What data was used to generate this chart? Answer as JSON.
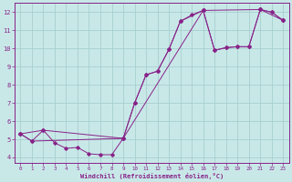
{
  "background_color": "#c8e8e8",
  "grid_color": "#a8cece",
  "line_color": "#882288",
  "marker": "D",
  "marker_size": 1.8,
  "xlabel": "Windchill (Refroidissement éolien,°C)",
  "xlim": [
    -0.5,
    23.5
  ],
  "ylim": [
    3.7,
    12.5
  ],
  "xticks": [
    0,
    1,
    2,
    3,
    4,
    5,
    6,
    7,
    8,
    9,
    10,
    11,
    12,
    13,
    14,
    15,
    16,
    17,
    18,
    19,
    20,
    21,
    22,
    23
  ],
  "yticks": [
    4,
    5,
    6,
    7,
    8,
    9,
    10,
    11,
    12
  ],
  "line1_x": [
    0,
    1,
    2,
    3,
    4,
    5,
    6,
    7,
    8,
    9,
    10,
    11,
    12,
    13,
    14,
    15,
    16,
    17,
    18,
    19,
    20,
    21,
    22,
    23
  ],
  "line1_y": [
    5.3,
    4.9,
    5.5,
    4.8,
    4.5,
    4.55,
    4.2,
    4.15,
    4.15,
    5.05,
    7.0,
    8.55,
    8.75,
    9.95,
    11.5,
    11.85,
    12.1,
    9.9,
    10.05,
    10.1,
    10.1,
    12.15,
    12.0,
    11.55
  ],
  "line2_x": [
    0,
    1,
    9,
    16,
    21,
    23
  ],
  "line2_y": [
    5.3,
    4.9,
    5.05,
    12.1,
    12.15,
    11.55
  ],
  "line3_x": [
    0,
    2,
    9,
    10,
    11,
    12,
    13,
    14,
    16,
    17,
    18,
    19,
    20,
    21,
    22,
    23
  ],
  "line3_y": [
    5.3,
    5.5,
    5.05,
    7.0,
    8.55,
    8.75,
    9.95,
    11.5,
    12.1,
    9.9,
    10.05,
    10.1,
    10.1,
    12.15,
    12.0,
    11.55
  ]
}
